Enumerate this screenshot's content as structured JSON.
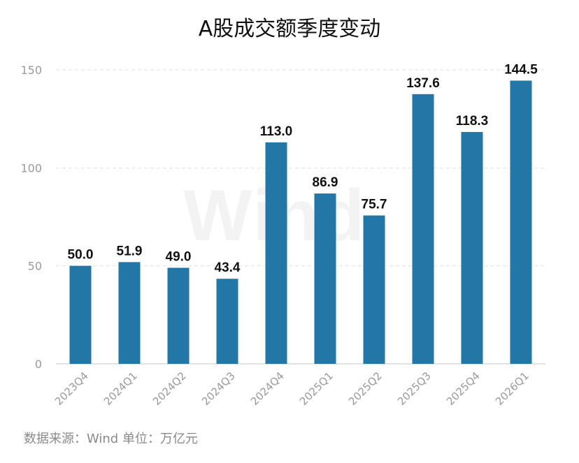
{
  "title": "A股成交额季度变动",
  "source": "数据来源：Wind  单位：万亿元",
  "watermark": "Wind",
  "colors": {
    "bar": "#2277a6",
    "grid": "#e1e1e1",
    "axis": "#d9d9d9",
    "tick": "#9a9a9a",
    "label": "#111111"
  },
  "chart_data": {
    "type": "bar",
    "title": "A股成交额季度变动",
    "categories": [
      "2023Q4",
      "2024Q1",
      "2024Q2",
      "2024Q3",
      "2024Q4",
      "2025Q1",
      "2025Q2",
      "2025Q3",
      "2025Q4",
      "2026Q1"
    ],
    "values": [
      50.0,
      51.9,
      49.0,
      43.4,
      113.0,
      86.9,
      75.7,
      137.6,
      118.3,
      144.5
    ],
    "value_labels": [
      "50.0",
      "51.9",
      "49.0",
      "43.4",
      "113.0",
      "86.9",
      "75.7",
      "137.6",
      "118.3",
      "144.5"
    ],
    "yticks": [
      0,
      50,
      100,
      150
    ],
    "ylim": [
      0,
      150
    ],
    "xlabel": "",
    "ylabel": "",
    "grid": true,
    "legend": "none"
  }
}
